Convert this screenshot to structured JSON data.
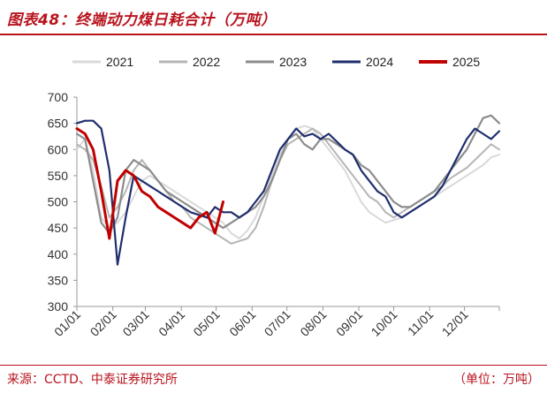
{
  "header": {
    "title": "图表48：终端动力煤日耗合计（万吨）"
  },
  "footer": {
    "source": "来源：CCTD、中泰证券研究所",
    "unit": "（单位：万吨）"
  },
  "chart_data": {
    "type": "line",
    "ylim": [
      300,
      700
    ],
    "yticks": [
      300,
      350,
      400,
      450,
      500,
      550,
      600,
      650,
      700
    ],
    "xticks": [
      "01/01",
      "02/01",
      "03/01",
      "04/01",
      "05/01",
      "06/01",
      "07/01",
      "08/01",
      "09/01",
      "10/01",
      "11/01",
      "12/01"
    ],
    "legend_position": "top",
    "series": [
      {
        "name": "2021",
        "color": "#d9d9d9",
        "width": 2,
        "x": [
          1,
          8,
          15,
          22,
          29,
          36,
          43,
          50,
          57,
          64,
          71,
          78,
          85,
          92,
          99,
          106,
          113,
          120,
          127,
          134,
          141,
          148,
          155,
          162,
          169,
          176,
          183,
          190,
          197,
          204,
          211,
          218,
          225,
          232,
          239,
          246,
          253,
          260,
          267,
          274,
          281,
          288,
          295,
          302,
          309,
          316,
          323,
          330,
          337,
          344,
          351,
          358,
          365
        ],
        "y": [
          600,
          620,
          560,
          470,
          450,
          460,
          480,
          510,
          540,
          550,
          540,
          530,
          520,
          510,
          500,
          490,
          480,
          470,
          460,
          440,
          430,
          445,
          470,
          510,
          550,
          590,
          620,
          640,
          645,
          640,
          620,
          600,
          580,
          560,
          530,
          500,
          480,
          470,
          460,
          465,
          470,
          480,
          490,
          500,
          510,
          520,
          530,
          540,
          550,
          560,
          570,
          585,
          590
        ]
      },
      {
        "name": "2022",
        "color": "#b5b5b5",
        "width": 2,
        "x": [
          1,
          8,
          15,
          22,
          29,
          36,
          43,
          50,
          57,
          64,
          71,
          78,
          85,
          92,
          99,
          106,
          113,
          120,
          127,
          134,
          141,
          148,
          155,
          162,
          169,
          176,
          183,
          190,
          197,
          204,
          211,
          218,
          225,
          232,
          239,
          246,
          253,
          260,
          267,
          274,
          281,
          288,
          295,
          302,
          309,
          316,
          323,
          330,
          337,
          344,
          351,
          358,
          365
        ],
        "y": [
          610,
          600,
          580,
          530,
          470,
          490,
          520,
          560,
          580,
          560,
          540,
          520,
          500,
          490,
          470,
          460,
          450,
          440,
          430,
          420,
          425,
          430,
          450,
          490,
          540,
          580,
          610,
          620,
          630,
          640,
          630,
          610,
          590,
          570,
          550,
          530,
          510,
          500,
          480,
          470,
          480,
          490,
          500,
          510,
          520,
          530,
          545,
          555,
          565,
          580,
          595,
          610,
          600
        ]
      },
      {
        "name": "2023",
        "color": "#8c8c8c",
        "width": 2.2,
        "x": [
          1,
          8,
          15,
          22,
          29,
          36,
          43,
          50,
          57,
          64,
          71,
          78,
          85,
          92,
          99,
          106,
          113,
          120,
          127,
          134,
          141,
          148,
          155,
          162,
          169,
          176,
          183,
          190,
          197,
          204,
          211,
          218,
          225,
          232,
          239,
          246,
          253,
          260,
          267,
          274,
          281,
          288,
          295,
          302,
          309,
          316,
          323,
          330,
          337,
          344,
          351,
          358,
          365
        ],
        "y": [
          630,
          620,
          540,
          460,
          440,
          470,
          560,
          580,
          570,
          560,
          540,
          520,
          510,
          500,
          490,
          480,
          470,
          460,
          450,
          460,
          470,
          480,
          490,
          510,
          540,
          580,
          620,
          630,
          610,
          600,
          620,
          620,
          610,
          600,
          590,
          570,
          560,
          540,
          520,
          500,
          490,
          490,
          500,
          510,
          520,
          540,
          560,
          580,
          600,
          630,
          660,
          665,
          650
        ]
      },
      {
        "name": "2024",
        "color": "#1f2e6e",
        "width": 2.2,
        "x": [
          1,
          8,
          15,
          22,
          29,
          36,
          43,
          50,
          57,
          64,
          71,
          78,
          85,
          92,
          99,
          106,
          113,
          120,
          127,
          134,
          141,
          148,
          155,
          162,
          169,
          176,
          183,
          190,
          197,
          204,
          211,
          218,
          225,
          232,
          239,
          246,
          253,
          260,
          267,
          274,
          281,
          288,
          295,
          302,
          309,
          316,
          323,
          330,
          337,
          344,
          351,
          358,
          365
        ],
        "y": [
          650,
          655,
          655,
          640,
          560,
          380,
          470,
          550,
          540,
          530,
          520,
          510,
          500,
          490,
          480,
          475,
          470,
          490,
          480,
          480,
          470,
          480,
          500,
          520,
          560,
          600,
          620,
          640,
          625,
          630,
          620,
          630,
          615,
          600,
          590,
          560,
          540,
          520,
          510,
          480,
          470,
          480,
          490,
          500,
          510,
          530,
          560,
          590,
          620,
          640,
          630,
          620,
          635
        ]
      },
      {
        "name": "2025",
        "color": "#c00000",
        "width": 3,
        "x": [
          1,
          8,
          15,
          22,
          29,
          36,
          43,
          50,
          57,
          64,
          71,
          78,
          85,
          92,
          99,
          106,
          113,
          120,
          127
        ],
        "y": [
          640,
          630,
          600,
          520,
          430,
          540,
          560,
          550,
          520,
          510,
          490,
          480,
          470,
          460,
          450,
          470,
          480,
          440,
          500
        ]
      }
    ]
  }
}
